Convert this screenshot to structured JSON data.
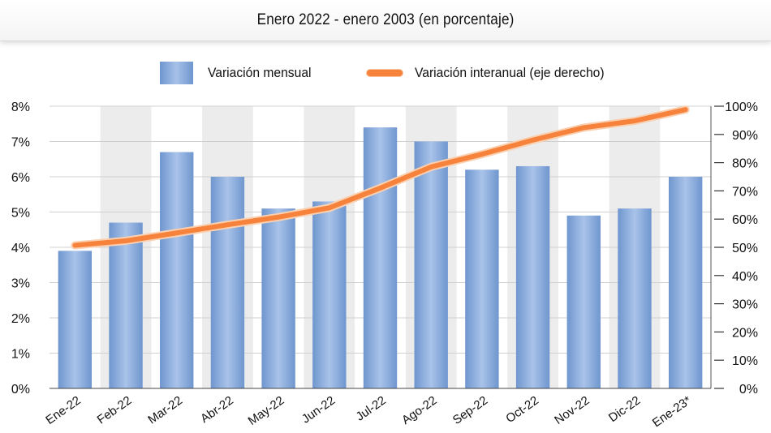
{
  "chart_data": {
    "type": "bar+line",
    "title": "Enero 2022 - enero 2003 (en porcentaje)",
    "categories": [
      "Ene-22",
      "Feb-22",
      "Mar-22",
      "Abr-22",
      "May-22",
      "Jun-22",
      "Jul-22",
      "Ago-22",
      "Sep-22",
      "Oct-22",
      "Nov-22",
      "Dic-22",
      "Ene-23*"
    ],
    "series": [
      {
        "name": "Variación mensual",
        "type": "bar",
        "axis": "left",
        "values": [
          3.9,
          4.7,
          6.7,
          6.0,
          5.1,
          5.3,
          7.4,
          7.0,
          6.2,
          6.3,
          4.9,
          5.1,
          6.0
        ],
        "color": "#7fa3d9"
      },
      {
        "name": "Variación interanual (eje derecho)",
        "type": "line",
        "axis": "right",
        "values": [
          50.7,
          52.3,
          55.1,
          58.0,
          60.7,
          64.0,
          71.0,
          78.5,
          83.0,
          88.0,
          92.4,
          94.8,
          98.8
        ],
        "color": "#f6823c"
      }
    ],
    "y_left": {
      "range": [
        0,
        8
      ],
      "ticks": [
        "0%",
        "1%",
        "2%",
        "3%",
        "4%",
        "5%",
        "6%",
        "7%",
        "8%"
      ]
    },
    "y_right": {
      "range": [
        0,
        100
      ],
      "ticks": [
        "0%",
        "10%",
        "20%",
        "30%",
        "40%",
        "50%",
        "60%",
        "70%",
        "80%",
        "90%",
        "100%"
      ]
    },
    "grid": true,
    "legend_position": "top"
  }
}
